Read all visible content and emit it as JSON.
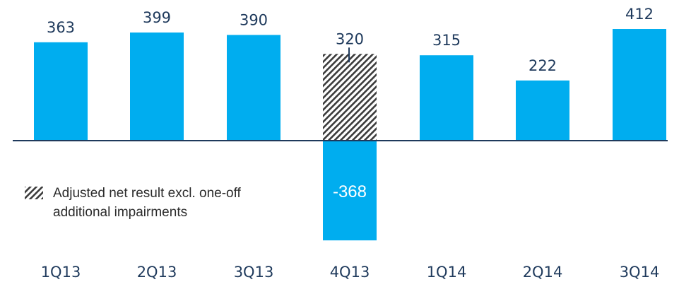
{
  "chart_data": {
    "type": "bar",
    "categories": [
      "1Q13",
      "2Q13",
      "3Q13",
      "4Q13",
      "1Q14",
      "2Q14",
      "3Q14"
    ],
    "series": [
      {
        "values": [
          363,
          399,
          390,
          -368,
          315,
          222,
          412
        ]
      },
      {
        "name": "Adjusted net result excl. one-off additional impairments",
        "values": [
          null,
          null,
          null,
          320,
          null,
          null,
          null
        ]
      }
    ],
    "data_labels": [
      "363",
      "399",
      "390",
      "320",
      "315",
      "222",
      "412"
    ],
    "negative_label": "-368",
    "ylim": [
      -390,
      440
    ],
    "grid": false,
    "legend_position": "bottom-left",
    "colors": {
      "bar": "#00adef",
      "axis": "#1f3a5c",
      "hatch": "#3a3a3a",
      "text": "#1f3a5c"
    }
  },
  "legend": {
    "line1": "Adjusted net result excl. one-off",
    "line2": "additional impairments"
  }
}
